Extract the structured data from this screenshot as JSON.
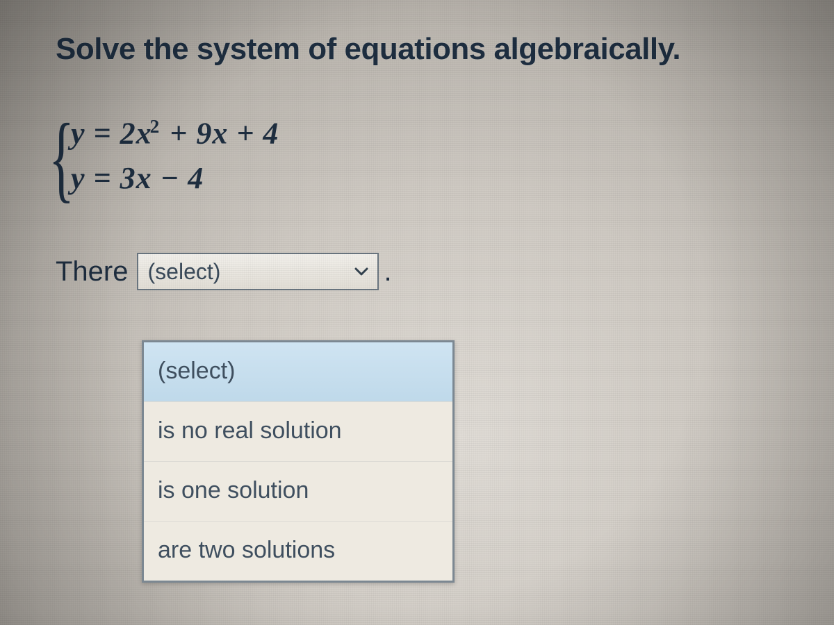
{
  "heading": "Solve the system of equations algebraically.",
  "equations": {
    "brace": "{",
    "line1_html": "y = 2x<sup>2</sup> + 9x + 4",
    "line2_html": "y = 3x − 4"
  },
  "answer": {
    "prefix": "There",
    "select_placeholder": "(select)",
    "period": "."
  },
  "dropdown": {
    "options": [
      {
        "label": "(select)",
        "highlighted": true
      },
      {
        "label": "is no real solution",
        "highlighted": false
      },
      {
        "label": "is one solution",
        "highlighted": false
      },
      {
        "label": "are two solutions",
        "highlighted": false
      }
    ]
  },
  "colors": {
    "text": "#1e2e40",
    "select_border": "#6a7680",
    "dropdown_border": "#7c8892",
    "highlight_bg_top": "#cfe4f2",
    "highlight_bg_bottom": "#bfd9ea",
    "panel_bg": "#efece5"
  }
}
